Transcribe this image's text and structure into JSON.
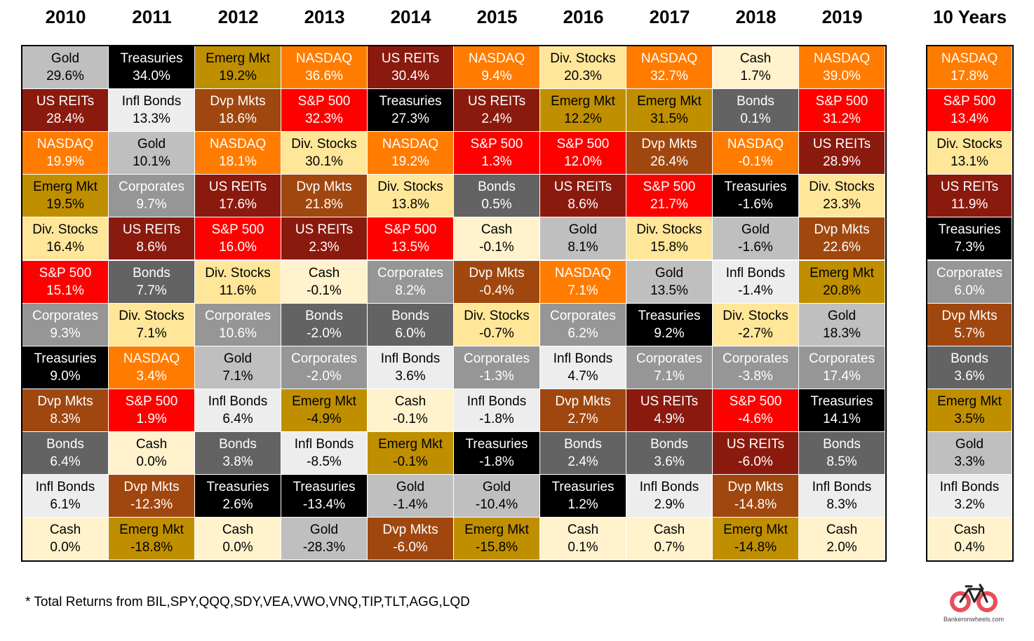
{
  "chart_data": {
    "type": "table",
    "title": "",
    "columns": [
      "2010",
      "2011",
      "2012",
      "2013",
      "2014",
      "2015",
      "2016",
      "2017",
      "2018",
      "2019"
    ],
    "summary_column": "10 Years",
    "rows_per_column": 12,
    "data": [
      [
        [
          "Gold",
          "29.6%"
        ],
        [
          "US REITs",
          "28.4%"
        ],
        [
          "NASDAQ",
          "19.9%"
        ],
        [
          "Emerg Mkt",
          "19.5%"
        ],
        [
          "Div. Stocks",
          "16.4%"
        ],
        [
          "S&P 500",
          "15.1%"
        ],
        [
          "Corporates",
          "9.3%"
        ],
        [
          "Treasuries",
          "9.0%"
        ],
        [
          "Dvp Mkts",
          "8.3%"
        ],
        [
          "Bonds",
          "6.4%"
        ],
        [
          "Infl Bonds",
          "6.1%"
        ],
        [
          "Cash",
          "0.0%"
        ]
      ],
      [
        [
          "Treasuries",
          "34.0%"
        ],
        [
          "Infl Bonds",
          "13.3%"
        ],
        [
          "Gold",
          "10.1%"
        ],
        [
          "Corporates",
          "9.7%"
        ],
        [
          "US REITs",
          "8.6%"
        ],
        [
          "Bonds",
          "7.7%"
        ],
        [
          "Div. Stocks",
          "7.1%"
        ],
        [
          "NASDAQ",
          "3.4%"
        ],
        [
          "S&P 500",
          "1.9%"
        ],
        [
          "Cash",
          "0.0%"
        ],
        [
          "Dvp Mkts",
          "-12.3%"
        ],
        [
          "Emerg Mkt",
          "-18.8%"
        ]
      ],
      [
        [
          "Emerg Mkt",
          "19.2%"
        ],
        [
          "Dvp Mkts",
          "18.6%"
        ],
        [
          "NASDAQ",
          "18.1%"
        ],
        [
          "US REITs",
          "17.6%"
        ],
        [
          "S&P 500",
          "16.0%"
        ],
        [
          "Div. Stocks",
          "11.6%"
        ],
        [
          "Corporates",
          "10.6%"
        ],
        [
          "Gold",
          "7.1%"
        ],
        [
          "Infl Bonds",
          "6.4%"
        ],
        [
          "Bonds",
          "3.8%"
        ],
        [
          "Treasuries",
          "2.6%"
        ],
        [
          "Cash",
          "0.0%"
        ]
      ],
      [
        [
          "NASDAQ",
          "36.6%"
        ],
        [
          "S&P 500",
          "32.3%"
        ],
        [
          "Div. Stocks",
          "30.1%"
        ],
        [
          "Dvp Mkts",
          "21.8%"
        ],
        [
          "US REITs",
          "2.3%"
        ],
        [
          "Cash",
          "-0.1%"
        ],
        [
          "Bonds",
          "-2.0%"
        ],
        [
          "Corporates",
          "-2.0%"
        ],
        [
          "Emerg Mkt",
          "-4.9%"
        ],
        [
          "Infl Bonds",
          "-8.5%"
        ],
        [
          "Treasuries",
          "-13.4%"
        ],
        [
          "Gold",
          "-28.3%"
        ]
      ],
      [
        [
          "US REITs",
          "30.4%"
        ],
        [
          "Treasuries",
          "27.3%"
        ],
        [
          "NASDAQ",
          "19.2%"
        ],
        [
          "Div. Stocks",
          "13.8%"
        ],
        [
          "S&P 500",
          "13.5%"
        ],
        [
          "Corporates",
          "8.2%"
        ],
        [
          "Bonds",
          "6.0%"
        ],
        [
          "Infl Bonds",
          "3.6%"
        ],
        [
          "Cash",
          "-0.1%"
        ],
        [
          "Emerg Mkt",
          "-0.1%"
        ],
        [
          "Gold",
          "-1.4%"
        ],
        [
          "Dvp Mkts",
          "-6.0%"
        ]
      ],
      [
        [
          "NASDAQ",
          "9.4%"
        ],
        [
          "US REITs",
          "2.4%"
        ],
        [
          "S&P 500",
          "1.3%"
        ],
        [
          "Bonds",
          "0.5%"
        ],
        [
          "Cash",
          "-0.1%"
        ],
        [
          "Dvp Mkts",
          "-0.4%"
        ],
        [
          "Div. Stocks",
          "-0.7%"
        ],
        [
          "Corporates",
          "-1.3%"
        ],
        [
          "Infl Bonds",
          "-1.8%"
        ],
        [
          "Treasuries",
          "-1.8%"
        ],
        [
          "Gold",
          "-10.4%"
        ],
        [
          "Emerg Mkt",
          "-15.8%"
        ]
      ],
      [
        [
          "Div. Stocks",
          "20.3%"
        ],
        [
          "Emerg Mkt",
          "12.2%"
        ],
        [
          "S&P 500",
          "12.0%"
        ],
        [
          "US REITs",
          "8.6%"
        ],
        [
          "Gold",
          "8.1%"
        ],
        [
          "NASDAQ",
          "7.1%"
        ],
        [
          "Corporates",
          "6.2%"
        ],
        [
          "Infl Bonds",
          "4.7%"
        ],
        [
          "Dvp Mkts",
          "2.7%"
        ],
        [
          "Bonds",
          "2.4%"
        ],
        [
          "Treasuries",
          "1.2%"
        ],
        [
          "Cash",
          "0.1%"
        ]
      ],
      [
        [
          "NASDAQ",
          "32.7%"
        ],
        [
          "Emerg Mkt",
          "31.5%"
        ],
        [
          "Dvp Mkts",
          "26.4%"
        ],
        [
          "S&P 500",
          "21.7%"
        ],
        [
          "Div. Stocks",
          "15.8%"
        ],
        [
          "Gold",
          "13.5%"
        ],
        [
          "Treasuries",
          "9.2%"
        ],
        [
          "Corporates",
          "7.1%"
        ],
        [
          "US REITs",
          "4.9%"
        ],
        [
          "Bonds",
          "3.6%"
        ],
        [
          "Infl Bonds",
          "2.9%"
        ],
        [
          "Cash",
          "0.7%"
        ]
      ],
      [
        [
          "Cash",
          "1.7%"
        ],
        [
          "Bonds",
          "0.1%"
        ],
        [
          "NASDAQ",
          "-0.1%"
        ],
        [
          "Treasuries",
          "-1.6%"
        ],
        [
          "Gold",
          "-1.6%"
        ],
        [
          "Infl Bonds",
          "-1.4%"
        ],
        [
          "Div. Stocks",
          "-2.7%"
        ],
        [
          "Corporates",
          "-3.8%"
        ],
        [
          "S&P 500",
          "-4.6%"
        ],
        [
          "US REITs",
          "-6.0%"
        ],
        [
          "Dvp Mkts",
          "-14.8%"
        ],
        [
          "Emerg Mkt",
          "-14.8%"
        ]
      ],
      [
        [
          "NASDAQ",
          "39.0%"
        ],
        [
          "S&P 500",
          "31.2%"
        ],
        [
          "US REITs",
          "28.9%"
        ],
        [
          "Div. Stocks",
          "23.3%"
        ],
        [
          "Dvp Mkts",
          "22.6%"
        ],
        [
          "Emerg Mkt",
          "20.8%"
        ],
        [
          "Gold",
          "18.3%"
        ],
        [
          "Corporates",
          "17.4%"
        ],
        [
          "Treasuries",
          "14.1%"
        ],
        [
          "Bonds",
          "8.5%"
        ],
        [
          "Infl Bonds",
          "8.3%"
        ],
        [
          "Cash",
          "2.0%"
        ]
      ]
    ],
    "summary": [
      [
        "NASDAQ",
        "17.8%"
      ],
      [
        "S&P 500",
        "13.4%"
      ],
      [
        "Div. Stocks",
        "13.1%"
      ],
      [
        "US REITs",
        "11.9%"
      ],
      [
        "Treasuries",
        "7.3%"
      ],
      [
        "Corporates",
        "6.0%"
      ],
      [
        "Dvp Mkts",
        "5.7%"
      ],
      [
        "Bonds",
        "3.6%"
      ],
      [
        "Emerg Mkt",
        "3.5%"
      ],
      [
        "Gold",
        "3.3%"
      ],
      [
        "Infl Bonds",
        "3.2%"
      ],
      [
        "Cash",
        "0.4%"
      ]
    ],
    "asset_colors": {
      "Gold": {
        "bg": "#bfbfbf",
        "fg": "#000000"
      },
      "Treasuries": {
        "bg": "#000000",
        "fg": "#ffffff"
      },
      "Emerg Mkt": {
        "bg": "#bf8f00",
        "fg": "#000000"
      },
      "NASDAQ": {
        "bg": "#ff7c00",
        "fg": "#ffffff"
      },
      "US REITs": {
        "bg": "#8b1a0e",
        "fg": "#ffffff"
      },
      "Div. Stocks": {
        "bg": "#ffe699",
        "fg": "#000000"
      },
      "Cash": {
        "bg": "#fff2cc",
        "fg": "#000000"
      },
      "Infl Bonds": {
        "bg": "#ededed",
        "fg": "#000000"
      },
      "Dvp Mkts": {
        "bg": "#a0470f",
        "fg": "#ffffff"
      },
      "S&P 500": {
        "bg": "#ff0000",
        "fg": "#ffffff"
      },
      "Bonds": {
        "bg": "#636363",
        "fg": "#ffffff"
      },
      "Corporates": {
        "bg": "#969696",
        "fg": "#ffffff"
      }
    }
  },
  "footnote": "* Total Returns from BIL,SPY,QQQ,SDY,VEA,VWO,VNQ,TIP,TLT,AGG,LQD",
  "logo": {
    "text": "Bankeronwheels.com",
    "icon": "bicycle-icon",
    "color": "#e84f5a"
  }
}
